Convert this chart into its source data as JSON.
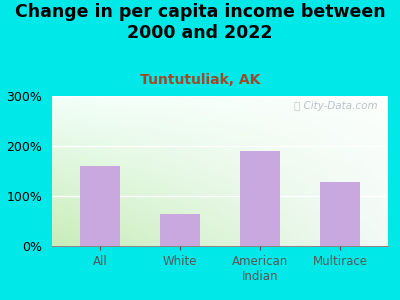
{
  "title": "Change in per capita income between\n2000 and 2022",
  "subtitle": "Tuntutuliak, AK",
  "categories": [
    "All",
    "White",
    "American\nIndian",
    "Multirace"
  ],
  "values": [
    160,
    65,
    190,
    128
  ],
  "bar_color": "#c9a8e0",
  "title_fontsize": 12.5,
  "subtitle_fontsize": 10,
  "subtitle_color": "#a04828",
  "background_outer": "#00e8e8",
  "ylim": [
    0,
    300
  ],
  "yticks": [
    0,
    100,
    200,
    300
  ],
  "ytick_labels": [
    "0%",
    "100%",
    "200%",
    "300%"
  ],
  "watermark": "ⓘ City-Data.com"
}
